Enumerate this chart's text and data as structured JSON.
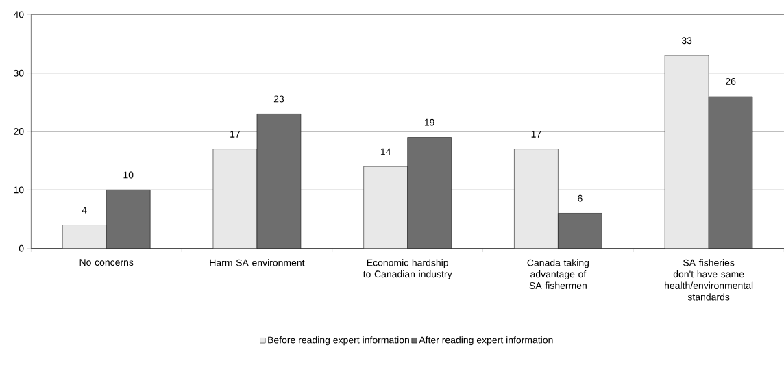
{
  "chart_data": {
    "type": "bar",
    "categories": [
      "No concerns",
      "Harm SA environment",
      "Economic hardship to Canadian industry",
      "Canada taking advantage of SA fishermen",
      "SA fisheries don't have same health/environmental standards"
    ],
    "series": [
      {
        "name": "Before reading expert information",
        "color": "#e8e8e8",
        "values": [
          4,
          17,
          14,
          17,
          33
        ]
      },
      {
        "name": "After reading expert information",
        "color": "#6e6e6e",
        "values": [
          10,
          23,
          19,
          6,
          26
        ]
      }
    ],
    "ylim": [
      0,
      40
    ],
    "yticks": [
      0,
      10,
      20,
      30,
      40
    ],
    "grid": "y",
    "legend": "bottom",
    "data_labels": true
  }
}
